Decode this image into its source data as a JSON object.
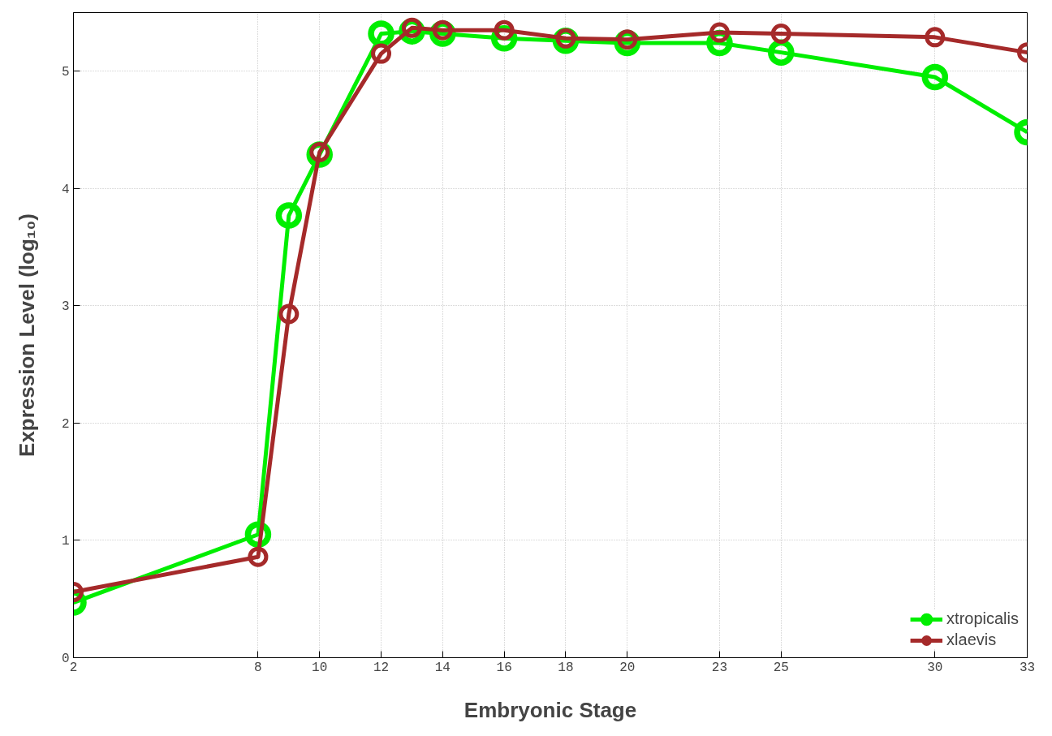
{
  "chart_data": {
    "type": "line",
    "xlabel": "Embryonic Stage",
    "ylabel": "Expression Level (log₁₀)",
    "x": [
      2,
      8,
      9,
      10,
      12,
      13,
      14,
      16,
      18,
      20,
      23,
      25,
      30,
      33
    ],
    "series": [
      {
        "name": "xtropicalis",
        "color": "#00ee00",
        "values": [
          0.47,
          1.05,
          3.77,
          4.29,
          5.32,
          5.34,
          5.32,
          5.28,
          5.26,
          5.24,
          5.24,
          5.16,
          4.95,
          4.48
        ]
      },
      {
        "name": "xlaevis",
        "color": "#a52a2a",
        "values": [
          0.56,
          0.86,
          2.93,
          4.31,
          5.15,
          5.37,
          5.35,
          5.35,
          5.28,
          5.27,
          5.33,
          5.32,
          5.29,
          5.16
        ]
      }
    ],
    "xlim": [
      2,
      33
    ],
    "xticks": [
      2,
      8,
      10,
      12,
      14,
      16,
      18,
      20,
      23,
      25,
      30,
      33
    ],
    "ylim": [
      0,
      5.5
    ],
    "yticks": [
      0,
      1,
      2,
      3,
      4,
      5
    ],
    "grid": true,
    "legend": "bottom right",
    "marker": "circle",
    "line_style": "solid"
  }
}
